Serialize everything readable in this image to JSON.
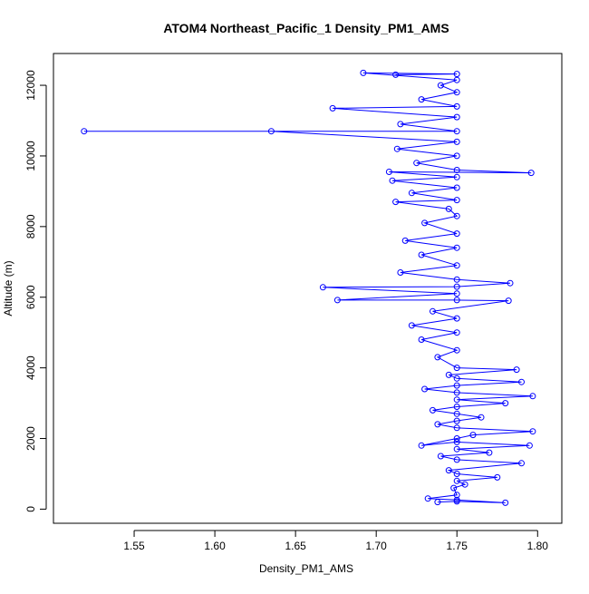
{
  "chart_data": {
    "type": "scatter",
    "title": "ATOM4 Northeast_Pacific_1 Density_PM1_AMS",
    "xlabel": "Density_PM1_AMS",
    "ylabel": "Altitude (m)",
    "xlim": [
      1.5,
      1.815
    ],
    "ylim": [
      -400,
      12900
    ],
    "x_ticks": [
      1.55,
      1.6,
      1.65,
      1.7,
      1.75,
      1.8
    ],
    "x_tick_labels": [
      "1.55",
      "1.60",
      "1.65",
      "1.70",
      "1.75",
      "1.80"
    ],
    "y_ticks": [
      0,
      2000,
      4000,
      6000,
      8000,
      10000,
      12000
    ],
    "y_tick_labels": [
      "0",
      "2000",
      "4000",
      "6000",
      "8000",
      "10000",
      "12000"
    ],
    "grid": false,
    "legend": "none",
    "marker": "open-circle",
    "connect_points": true,
    "colors": {
      "series": "#0000ff",
      "frame": "#000000",
      "background": "#ffffff"
    },
    "series": [
      {
        "values": [
          [
            1.738,
            200
          ],
          [
            1.75,
            220
          ],
          [
            1.78,
            180
          ],
          [
            1.75,
            260
          ],
          [
            1.732,
            300
          ],
          [
            1.75,
            400
          ],
          [
            1.748,
            600
          ],
          [
            1.755,
            700
          ],
          [
            1.75,
            800
          ],
          [
            1.775,
            900
          ],
          [
            1.75,
            1000
          ],
          [
            1.745,
            1100
          ],
          [
            1.79,
            1300
          ],
          [
            1.75,
            1400
          ],
          [
            1.74,
            1500
          ],
          [
            1.77,
            1600
          ],
          [
            1.75,
            1700
          ],
          [
            1.795,
            1800
          ],
          [
            1.75,
            1900
          ],
          [
            1.728,
            1800
          ],
          [
            1.75,
            2000
          ],
          [
            1.76,
            2100
          ],
          [
            1.797,
            2200
          ],
          [
            1.75,
            2300
          ],
          [
            1.738,
            2400
          ],
          [
            1.75,
            2500
          ],
          [
            1.765,
            2600
          ],
          [
            1.75,
            2700
          ],
          [
            1.735,
            2800
          ],
          [
            1.75,
            2900
          ],
          [
            1.78,
            3000
          ],
          [
            1.75,
            3100
          ],
          [
            1.797,
            3200
          ],
          [
            1.75,
            3300
          ],
          [
            1.73,
            3400
          ],
          [
            1.75,
            3500
          ],
          [
            1.79,
            3600
          ],
          [
            1.75,
            3700
          ],
          [
            1.745,
            3800
          ],
          [
            1.787,
            3950
          ],
          [
            1.75,
            4000
          ],
          [
            1.738,
            4300
          ],
          [
            1.75,
            4500
          ],
          [
            1.728,
            4800
          ],
          [
            1.75,
            5000
          ],
          [
            1.722,
            5200
          ],
          [
            1.75,
            5400
          ],
          [
            1.735,
            5600
          ],
          [
            1.782,
            5900
          ],
          [
            1.75,
            5920
          ],
          [
            1.676,
            5920
          ],
          [
            1.75,
            6100
          ],
          [
            1.667,
            6280
          ],
          [
            1.75,
            6300
          ],
          [
            1.783,
            6400
          ],
          [
            1.75,
            6500
          ],
          [
            1.715,
            6700
          ],
          [
            1.75,
            6900
          ],
          [
            1.728,
            7200
          ],
          [
            1.75,
            7400
          ],
          [
            1.718,
            7600
          ],
          [
            1.75,
            7800
          ],
          [
            1.73,
            8100
          ],
          [
            1.75,
            8300
          ],
          [
            1.745,
            8500
          ],
          [
            1.712,
            8700
          ],
          [
            1.75,
            8750
          ],
          [
            1.722,
            8950
          ],
          [
            1.75,
            9100
          ],
          [
            1.71,
            9300
          ],
          [
            1.75,
            9400
          ],
          [
            1.708,
            9550
          ],
          [
            1.796,
            9520
          ],
          [
            1.75,
            9600
          ],
          [
            1.725,
            9800
          ],
          [
            1.75,
            10000
          ],
          [
            1.713,
            10200
          ],
          [
            1.75,
            10400
          ],
          [
            1.635,
            10700
          ],
          [
            1.519,
            10700
          ],
          [
            1.75,
            10700
          ],
          [
            1.715,
            10900
          ],
          [
            1.75,
            11100
          ],
          [
            1.673,
            11350
          ],
          [
            1.75,
            11400
          ],
          [
            1.728,
            11600
          ],
          [
            1.75,
            11800
          ],
          [
            1.74,
            12000
          ],
          [
            1.75,
            12150
          ],
          [
            1.692,
            12350
          ],
          [
            1.75,
            12320
          ],
          [
            1.712,
            12300
          ]
        ]
      }
    ]
  }
}
